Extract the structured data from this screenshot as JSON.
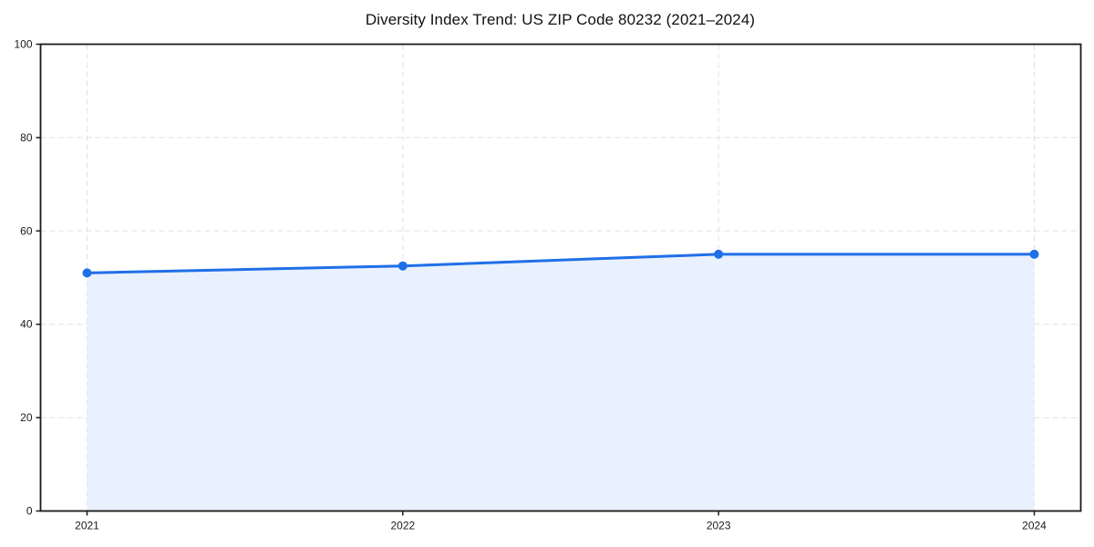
{
  "chart_data": {
    "type": "line",
    "title": "Diversity Index Trend: US ZIP Code 80232 (2021–2024)",
    "x": [
      "2021",
      "2022",
      "2023",
      "2024"
    ],
    "series": [
      {
        "name": "Diversity Index",
        "values": [
          51.0,
          52.5,
          55.0,
          55.0
        ]
      }
    ],
    "xlabel": "",
    "ylabel": "",
    "ylim": [
      0,
      100
    ],
    "yticks": [
      0,
      20,
      40,
      60,
      80,
      100
    ],
    "grid": "dashed, horizontal at y-ticks and vertical at each year",
    "legend": "none",
    "area_fill": true,
    "marker": "circle",
    "colors": {
      "line": "#1f6fe8",
      "marker": "#1f6fe8",
      "area": "#e8f1fd",
      "grid": "#e0e0e0",
      "spine": "#1a1a1a",
      "tick_text": "#1a1a1a",
      "background": "#ffffff"
    }
  }
}
